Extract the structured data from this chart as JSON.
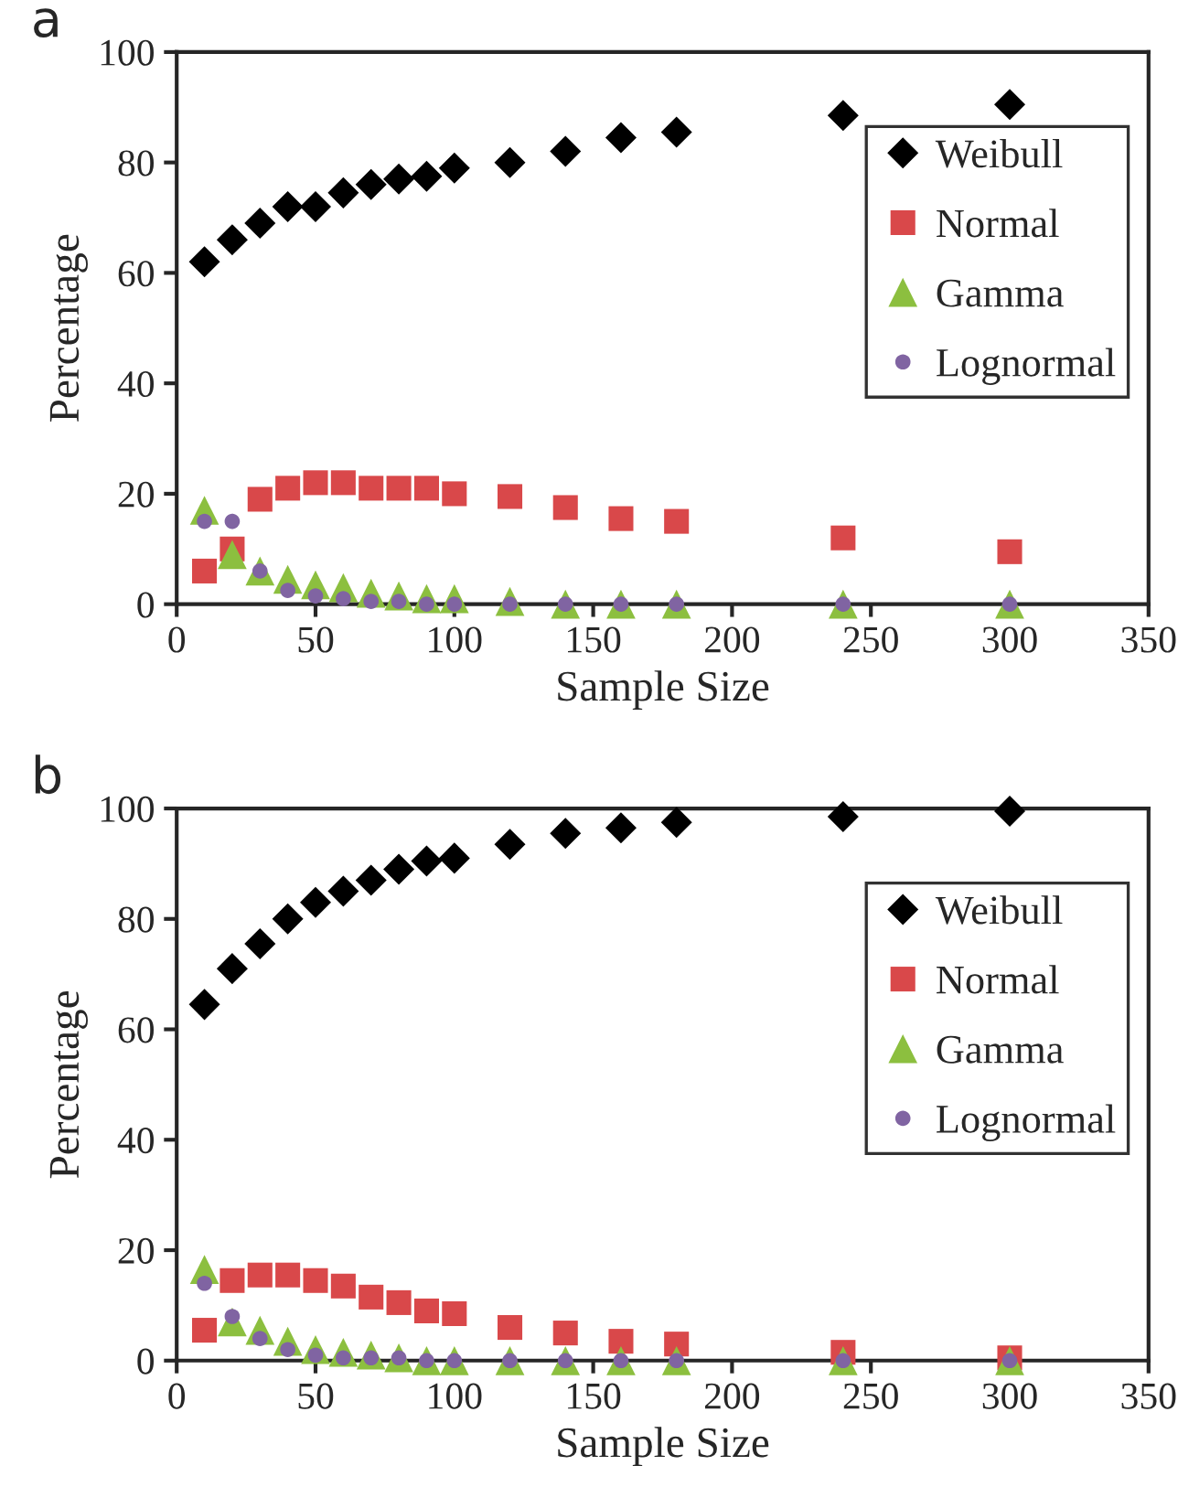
{
  "chart_data": [
    {
      "type": "scatter",
      "title": "a",
      "xlabel": "Sample Size",
      "ylabel": "Percentage",
      "xlim": [
        0,
        350
      ],
      "xticks": [
        0,
        50,
        100,
        150,
        200,
        250,
        300,
        350
      ],
      "ylim": [
        0,
        100
      ],
      "yticks": [
        0,
        20,
        40,
        60,
        80,
        100
      ],
      "grid": false,
      "legend": "right",
      "x": [
        10,
        20,
        30,
        40,
        50,
        60,
        70,
        80,
        90,
        100,
        120,
        140,
        160,
        180,
        240,
        300
      ],
      "series": [
        {
          "name": "Weibull",
          "color": "#000000",
          "marker": "diamond",
          "values": [
            62,
            66,
            69,
            72,
            72,
            74.5,
            76,
            77,
            77.5,
            79,
            80,
            82,
            84.5,
            85.5,
            88.5,
            90.5
          ]
        },
        {
          "name": "Normal",
          "color": "#d9484a",
          "marker": "square",
          "values": [
            6,
            10,
            19,
            21,
            22,
            22,
            21,
            21,
            21,
            20,
            19.5,
            17.5,
            15.5,
            15,
            12,
            9.5
          ]
        },
        {
          "name": "Gamma",
          "color": "#8cbf3f",
          "marker": "triangle",
          "values": [
            17,
            9,
            6,
            4.5,
            3.5,
            3,
            2,
            1.5,
            1,
            1,
            0.5,
            0,
            0,
            0,
            0,
            0
          ]
        },
        {
          "name": "Lognormal",
          "color": "#8064a2",
          "marker": "circle",
          "values": [
            15,
            15,
            6,
            2.5,
            1.5,
            1,
            0.5,
            0.5,
            0,
            0,
            0,
            0,
            0,
            0,
            0,
            0
          ]
        }
      ]
    },
    {
      "type": "scatter",
      "title": "b",
      "xlabel": "Sample Size",
      "ylabel": "Percentage",
      "xlim": [
        0,
        350
      ],
      "xticks": [
        0,
        50,
        100,
        150,
        200,
        250,
        300,
        350
      ],
      "ylim": [
        0,
        100
      ],
      "yticks": [
        0,
        20,
        40,
        60,
        80,
        100
      ],
      "grid": false,
      "legend": "right",
      "x": [
        10,
        20,
        30,
        40,
        50,
        60,
        70,
        80,
        90,
        100,
        120,
        140,
        160,
        180,
        240,
        300
      ],
      "series": [
        {
          "name": "Weibull",
          "color": "#000000",
          "marker": "diamond",
          "values": [
            64.5,
            71,
            75.5,
            80,
            83,
            85,
            87,
            89,
            90.5,
            91,
            93.5,
            95.5,
            96.5,
            97.5,
            98.5,
            99.5
          ]
        },
        {
          "name": "Normal",
          "color": "#d9484a",
          "marker": "square",
          "values": [
            5.5,
            14.5,
            15.5,
            15.5,
            14.5,
            13.5,
            11.5,
            10.5,
            9,
            8.5,
            6,
            5,
            3.5,
            3,
            1.5,
            0.5
          ]
        },
        {
          "name": "Gamma",
          "color": "#8cbf3f",
          "marker": "triangle",
          "values": [
            16.5,
            7,
            5.5,
            3.5,
            2,
            1.5,
            1,
            0.5,
            0,
            0,
            0,
            0,
            0,
            0,
            0,
            0
          ]
        },
        {
          "name": "Lognormal",
          "color": "#8064a2",
          "marker": "circle",
          "values": [
            14,
            8,
            4,
            2,
            1,
            0.5,
            0.5,
            0.5,
            0,
            0,
            0,
            0,
            0,
            0,
            0,
            0
          ]
        }
      ]
    }
  ]
}
